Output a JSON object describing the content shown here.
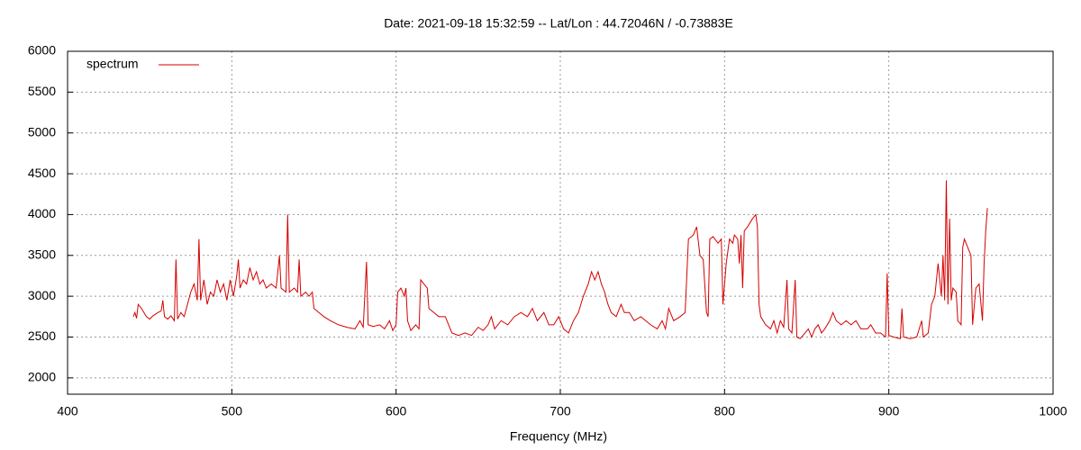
{
  "chart_data": {
    "type": "line",
    "title": "Date: 2021-09-18 15:32:59  --  Lat/Lon : 44.72046N / -0.73883E",
    "x_label": "Frequency (MHz)",
    "xlim": [
      400,
      1000
    ],
    "xticks": [
      400,
      500,
      600,
      700,
      800,
      900,
      1000
    ],
    "ylim": [
      1800,
      6000
    ],
    "yticks": [
      2000,
      2500,
      3000,
      3500,
      4000,
      4500,
      5000,
      5500,
      6000
    ],
    "grid": true,
    "legend": "top-left",
    "x": [
      440,
      441,
      442,
      443,
      445,
      448,
      450,
      452,
      455,
      457,
      458,
      459,
      461,
      463,
      465,
      466,
      467,
      469,
      471,
      473,
      475,
      477,
      479,
      480,
      481,
      483,
      485,
      487,
      489,
      491,
      493,
      495,
      497,
      499,
      501,
      503,
      504,
      505,
      507,
      509,
      511,
      513,
      515,
      517,
      519,
      521,
      524,
      527,
      529,
      530,
      533,
      534,
      535,
      538,
      540,
      541,
      542,
      545,
      547,
      549,
      550,
      553,
      556,
      560,
      565,
      570,
      575,
      578,
      580,
      582,
      583,
      586,
      590,
      593,
      596,
      598,
      600,
      601,
      603,
      605,
      606,
      607,
      609,
      612,
      614,
      615,
      617,
      619,
      620,
      623,
      626,
      630,
      632,
      634,
      638,
      642,
      646,
      650,
      653,
      656,
      658,
      660,
      664,
      668,
      672,
      676,
      680,
      683,
      686,
      690,
      693,
      696,
      699,
      702,
      705,
      708,
      711,
      714,
      717,
      719,
      721,
      723,
      725,
      727,
      729,
      731,
      734,
      737,
      739,
      742,
      745,
      749,
      752,
      755,
      759,
      762,
      764,
      766,
      769,
      773,
      776,
      778,
      781,
      783,
      785,
      787,
      789,
      790,
      791,
      793,
      796,
      798,
      799,
      801,
      803,
      805,
      806,
      808,
      809,
      810,
      811,
      812,
      814,
      817,
      819,
      820,
      821,
      822,
      825,
      828,
      830,
      832,
      834,
      836,
      838,
      839,
      841,
      843,
      844,
      846,
      849,
      851,
      853,
      855,
      857,
      859,
      861,
      864,
      866,
      868,
      871,
      874,
      877,
      880,
      883,
      887,
      889,
      892,
      895,
      898,
      899,
      900,
      903,
      907,
      908,
      909,
      913,
      917,
      920,
      921,
      924,
      926,
      928,
      930,
      932,
      933,
      934,
      935,
      936,
      937,
      938,
      939,
      941,
      942,
      944,
      945,
      946,
      948,
      950,
      951,
      953,
      955,
      957,
      958,
      959,
      960
    ],
    "series": [
      {
        "name": "spectrum",
        "color": "#d40000",
        "values": [
          2750,
          2800,
          2730,
          2900,
          2850,
          2750,
          2720,
          2760,
          2800,
          2820,
          2950,
          2750,
          2720,
          2760,
          2700,
          3450,
          2720,
          2800,
          2750,
          2900,
          3050,
          3150,
          2950,
          3700,
          2950,
          3200,
          2900,
          3050,
          3000,
          3200,
          3050,
          3150,
          2950,
          3200,
          3000,
          3250,
          3450,
          3100,
          3200,
          3150,
          3350,
          3200,
          3300,
          3150,
          3200,
          3100,
          3150,
          3100,
          3500,
          3100,
          3050,
          4000,
          3050,
          3100,
          3050,
          3450,
          3000,
          3050,
          3000,
          3050,
          2850,
          2800,
          2750,
          2700,
          2650,
          2620,
          2600,
          2700,
          2620,
          3420,
          2650,
          2630,
          2650,
          2600,
          2700,
          2580,
          2650,
          3050,
          3100,
          3000,
          3100,
          2700,
          2580,
          2650,
          2600,
          3200,
          3150,
          3100,
          2850,
          2800,
          2750,
          2750,
          2650,
          2550,
          2520,
          2550,
          2520,
          2620,
          2580,
          2650,
          2750,
          2600,
          2700,
          2650,
          2750,
          2800,
          2750,
          2850,
          2700,
          2800,
          2650,
          2650,
          2750,
          2600,
          2550,
          2700,
          2800,
          3000,
          3150,
          3300,
          3200,
          3300,
          3150,
          3050,
          2900,
          2800,
          2750,
          2900,
          2800,
          2800,
          2700,
          2750,
          2700,
          2650,
          2600,
          2700,
          2600,
          2850,
          2700,
          2750,
          2800,
          3700,
          3750,
          3850,
          3500,
          3450,
          2800,
          2750,
          3700,
          3730,
          3650,
          3700,
          2900,
          3400,
          3700,
          3650,
          3750,
          3700,
          3400,
          3750,
          3100,
          3800,
          3850,
          3950,
          4000,
          3850,
          2900,
          2750,
          2650,
          2600,
          2700,
          2550,
          2700,
          2620,
          3200,
          2600,
          2550,
          3200,
          2500,
          2480,
          2550,
          2600,
          2500,
          2600,
          2650,
          2550,
          2600,
          2700,
          2800,
          2700,
          2650,
          2700,
          2650,
          2700,
          2600,
          2600,
          2650,
          2550,
          2550,
          2500,
          3280,
          2520,
          2500,
          2480,
          2850,
          2500,
          2480,
          2500,
          2700,
          2500,
          2550,
          2900,
          3000,
          3400,
          3000,
          3500,
          2950,
          4420,
          2900,
          3950,
          2950,
          3100,
          3050,
          2700,
          2650,
          3600,
          3700,
          3600,
          3500,
          2650,
          3100,
          3150,
          2700,
          3400,
          3800,
          4080
        ]
      }
    ]
  }
}
